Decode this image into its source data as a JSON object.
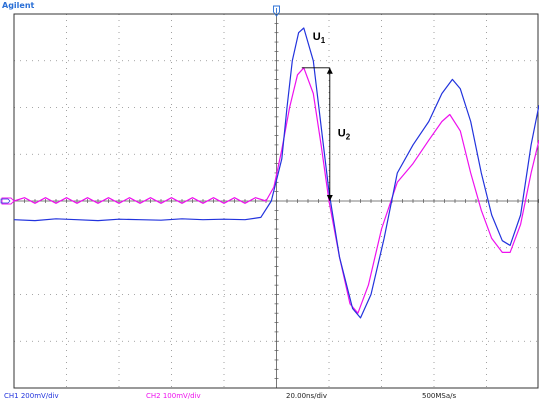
{
  "app": {
    "brand": "Agilent"
  },
  "footer": {
    "ch1_scale": "CH1 200mV/div",
    "ch2_scale": "CH2 100mV/div",
    "timebase": "20.00ns/div",
    "sample_rate": "500MSa/s"
  },
  "colors": {
    "background": "#ffffff",
    "grid": "#8a8a8a",
    "ch1": "#2233dd",
    "ch2": "#ee11ee",
    "annotation": "#000000",
    "trigger_marker": "#2a6fd6",
    "brand": "#2a6fd6"
  },
  "icons": {
    "trigger_marker": "trigger-position-icon",
    "ground_marker": "channel-ground-icon"
  },
  "chart_data": {
    "type": "line",
    "x_unit": "divisions",
    "y_unit": "divisions",
    "xlim": [
      -5,
      5
    ],
    "ylim": [
      -4,
      4
    ],
    "grid": true,
    "annotations": [
      {
        "label": "U",
        "subscript": "1",
        "target": "CH1 first peak"
      },
      {
        "label": "U",
        "subscript": "2",
        "target": "CH2 first peak amplitude"
      }
    ],
    "series": [
      {
        "channel": "CH1",
        "color": "#2233dd",
        "points": [
          [
            -5.0,
            -0.4
          ],
          [
            -4.6,
            -0.42
          ],
          [
            -4.2,
            -0.38
          ],
          [
            -3.8,
            -0.4
          ],
          [
            -3.4,
            -0.42
          ],
          [
            -3.0,
            -0.39
          ],
          [
            -2.6,
            -0.4
          ],
          [
            -2.2,
            -0.41
          ],
          [
            -1.8,
            -0.38
          ],
          [
            -1.4,
            -0.4
          ],
          [
            -1.0,
            -0.39
          ],
          [
            -0.6,
            -0.4
          ],
          [
            -0.3,
            -0.35
          ],
          [
            -0.1,
            0.0
          ],
          [
            0.1,
            0.9
          ],
          [
            0.2,
            2.0
          ],
          [
            0.3,
            3.0
          ],
          [
            0.42,
            3.6
          ],
          [
            0.52,
            3.7
          ],
          [
            0.7,
            3.0
          ],
          [
            0.85,
            1.6
          ],
          [
            1.0,
            0.2
          ],
          [
            1.2,
            -1.2
          ],
          [
            1.45,
            -2.3
          ],
          [
            1.6,
            -2.5
          ],
          [
            1.8,
            -2.0
          ],
          [
            2.05,
            -0.8
          ],
          [
            2.3,
            0.6
          ],
          [
            2.6,
            1.2
          ],
          [
            2.9,
            1.7
          ],
          [
            3.15,
            2.3
          ],
          [
            3.35,
            2.6
          ],
          [
            3.5,
            2.4
          ],
          [
            3.7,
            1.7
          ],
          [
            3.9,
            0.6
          ],
          [
            4.1,
            -0.3
          ],
          [
            4.3,
            -0.85
          ],
          [
            4.45,
            -0.95
          ],
          [
            4.65,
            -0.3
          ],
          [
            4.85,
            1.2
          ],
          [
            5.0,
            2.05
          ]
        ]
      },
      {
        "channel": "CH2",
        "color": "#ee11ee",
        "points": [
          [
            -5.0,
            0.0
          ],
          [
            -4.8,
            0.07
          ],
          [
            -4.6,
            -0.05
          ],
          [
            -4.4,
            0.07
          ],
          [
            -4.2,
            -0.05
          ],
          [
            -4.0,
            0.07
          ],
          [
            -3.8,
            -0.05
          ],
          [
            -3.6,
            0.07
          ],
          [
            -3.4,
            -0.05
          ],
          [
            -3.2,
            0.07
          ],
          [
            -3.0,
            -0.05
          ],
          [
            -2.8,
            0.07
          ],
          [
            -2.6,
            -0.05
          ],
          [
            -2.4,
            0.07
          ],
          [
            -2.2,
            -0.05
          ],
          [
            -2.0,
            0.07
          ],
          [
            -1.8,
            -0.05
          ],
          [
            -1.6,
            0.07
          ],
          [
            -1.4,
            -0.05
          ],
          [
            -1.2,
            0.07
          ],
          [
            -1.0,
            -0.05
          ],
          [
            -0.8,
            0.07
          ],
          [
            -0.6,
            -0.05
          ],
          [
            -0.4,
            0.07
          ],
          [
            -0.2,
            0.0
          ],
          [
            -0.05,
            0.3
          ],
          [
            0.1,
            1.1
          ],
          [
            0.25,
            2.0
          ],
          [
            0.4,
            2.7
          ],
          [
            0.52,
            2.85
          ],
          [
            0.7,
            2.3
          ],
          [
            0.85,
            1.2
          ],
          [
            1.0,
            0.0
          ],
          [
            1.2,
            -1.2
          ],
          [
            1.4,
            -2.2
          ],
          [
            1.55,
            -2.4
          ],
          [
            1.75,
            -1.8
          ],
          [
            2.0,
            -0.6
          ],
          [
            2.3,
            0.4
          ],
          [
            2.6,
            0.8
          ],
          [
            2.9,
            1.3
          ],
          [
            3.15,
            1.7
          ],
          [
            3.3,
            1.85
          ],
          [
            3.5,
            1.5
          ],
          [
            3.7,
            0.6
          ],
          [
            3.9,
            -0.2
          ],
          [
            4.1,
            -0.8
          ],
          [
            4.3,
            -1.1
          ],
          [
            4.45,
            -1.1
          ],
          [
            4.65,
            -0.5
          ],
          [
            4.85,
            0.6
          ],
          [
            5.0,
            1.3
          ]
        ]
      }
    ]
  }
}
